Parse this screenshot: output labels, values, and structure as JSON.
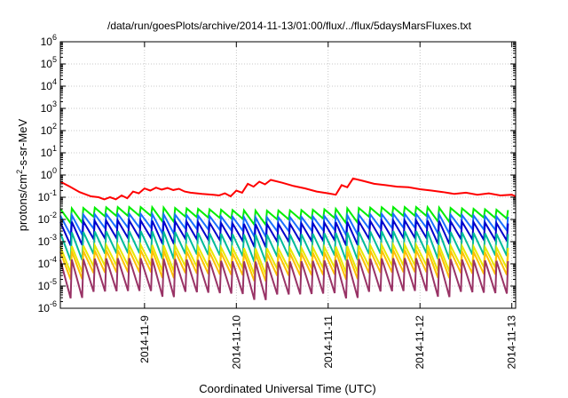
{
  "chart_data": {
    "type": "line",
    "title": "/data/run/goesPlots/archive/2014-11-13/01:00/flux/../flux/5daysMarsFluxes.txt",
    "xlabel": "Coordinated Universal Time (UTC)",
    "ylabel": {
      "base": "protons/cm",
      "sup": "2",
      "rest": "-s-sr-MeV"
    },
    "yscale": "log",
    "ylim": [
      -6,
      6
    ],
    "yticks": [
      {
        "exp": -6,
        "base": "10",
        "sup": "-6"
      },
      {
        "exp": -5,
        "base": "10",
        "sup": "-5"
      },
      {
        "exp": -4,
        "base": "10",
        "sup": "-4"
      },
      {
        "exp": -3,
        "base": "10",
        "sup": "-3"
      },
      {
        "exp": -2,
        "base": "10",
        "sup": "-2"
      },
      {
        "exp": -1,
        "base": "10",
        "sup": "-1"
      },
      {
        "exp": 0,
        "base": "10",
        "sup": "0"
      },
      {
        "exp": 1,
        "base": "10",
        "sup": "1"
      },
      {
        "exp": 2,
        "base": "10",
        "sup": "2"
      },
      {
        "exp": 3,
        "base": "10",
        "sup": "3"
      },
      {
        "exp": 4,
        "base": "10",
        "sup": "4"
      },
      {
        "exp": 5,
        "base": "10",
        "sup": "5"
      },
      {
        "exp": 6,
        "base": "10",
        "sup": "6"
      }
    ],
    "xlim": [
      "2014-11-08 02:00",
      "2014-11-13 01:00"
    ],
    "xticks": [
      {
        "t": "2014-11-09 00:00",
        "label": "2014-11-9"
      },
      {
        "t": "2014-11-10 00:00",
        "label": "2014-11-10"
      },
      {
        "t": "2014-11-11 00:00",
        "label": "2014-11-11"
      },
      {
        "t": "2014-11-12 00:00",
        "label": "2014-11-12"
      },
      {
        "t": "2014-11-13 00:00",
        "label": "2014-11-13"
      }
    ],
    "grid": true,
    "series": [
      {
        "color": "#ff0000",
        "points": [
          [
            "2014-11-08 02:00",
            0.5
          ],
          [
            "2014-11-08 04:30",
            0.3
          ],
          [
            "2014-11-08 07:00",
            0.17
          ],
          [
            "2014-11-08 10:00",
            0.11
          ],
          [
            "2014-11-08 12:00",
            0.1
          ],
          [
            "2014-11-08 13:30",
            0.08
          ],
          [
            "2014-11-08 15:00",
            0.1
          ],
          [
            "2014-11-08 16:30",
            0.08
          ],
          [
            "2014-11-08 18:00",
            0.12
          ],
          [
            "2014-11-08 19:30",
            0.09
          ],
          [
            "2014-11-08 21:00",
            0.18
          ],
          [
            "2014-11-08 22:30",
            0.15
          ],
          [
            "2014-11-09 00:00",
            0.25
          ],
          [
            "2014-11-09 01:30",
            0.2
          ],
          [
            "2014-11-09 03:00",
            0.27
          ],
          [
            "2014-11-09 04:30",
            0.22
          ],
          [
            "2014-11-09 06:00",
            0.26
          ],
          [
            "2014-11-09 07:30",
            0.21
          ],
          [
            "2014-11-09 09:00",
            0.24
          ],
          [
            "2014-11-09 10:30",
            0.18
          ],
          [
            "2014-11-09 12:00",
            0.16
          ],
          [
            "2014-11-09 15:00",
            0.14
          ],
          [
            "2014-11-09 18:00",
            0.13
          ],
          [
            "2014-11-09 19:30",
            0.12
          ],
          [
            "2014-11-09 21:00",
            0.15
          ],
          [
            "2014-11-09 22:30",
            0.11
          ],
          [
            "2014-11-10 00:00",
            0.2
          ],
          [
            "2014-11-10 01:30",
            0.16
          ],
          [
            "2014-11-10 03:00",
            0.4
          ],
          [
            "2014-11-10 04:30",
            0.3
          ],
          [
            "2014-11-10 06:00",
            0.5
          ],
          [
            "2014-11-10 07:30",
            0.38
          ],
          [
            "2014-11-10 09:00",
            0.6
          ],
          [
            "2014-11-10 12:00",
            0.45
          ],
          [
            "2014-11-10 15:00",
            0.32
          ],
          [
            "2014-11-10 18:00",
            0.25
          ],
          [
            "2014-11-10 21:00",
            0.18
          ],
          [
            "2014-11-11 00:00",
            0.15
          ],
          [
            "2014-11-11 02:00",
            0.13
          ],
          [
            "2014-11-11 03:30",
            0.35
          ],
          [
            "2014-11-11 05:00",
            0.28
          ],
          [
            "2014-11-11 06:30",
            0.7
          ],
          [
            "2014-11-11 09:00",
            0.55
          ],
          [
            "2014-11-11 12:00",
            0.4
          ],
          [
            "2014-11-11 15:00",
            0.35
          ],
          [
            "2014-11-11 18:00",
            0.3
          ],
          [
            "2014-11-11 21:00",
            0.28
          ],
          [
            "2014-11-12 00:00",
            0.23
          ],
          [
            "2014-11-12 03:00",
            0.2
          ],
          [
            "2014-11-12 06:00",
            0.17
          ],
          [
            "2014-11-12 09:00",
            0.14
          ],
          [
            "2014-11-12 12:00",
            0.16
          ],
          [
            "2014-11-12 15:00",
            0.13
          ],
          [
            "2014-11-12 18:00",
            0.15
          ],
          [
            "2014-11-12 21:00",
            0.12
          ],
          [
            "2014-11-13 00:00",
            0.13
          ],
          [
            "2014-11-13 01:00",
            0.11
          ]
        ]
      },
      {
        "color": "#00ee00",
        "sawtooth": {
          "high": 0.03,
          "low": 0.012,
          "period_h": 3
        }
      },
      {
        "color": "#1a6fff",
        "sawtooth": {
          "high": 0.015,
          "low": 0.0035,
          "period_h": 3
        }
      },
      {
        "color": "#0000cc",
        "sawtooth": {
          "high": 0.0075,
          "low": 0.0012,
          "period_h": 3
        }
      },
      {
        "color": "#00bb99",
        "sawtooth": {
          "high": 0.0025,
          "low": 0.00025,
          "period_h": 3
        }
      },
      {
        "color": "#e8e800",
        "sawtooth": {
          "high": 0.0006,
          "low": 7e-05,
          "period_h": 3
        }
      },
      {
        "color": "#ffc000",
        "sawtooth": {
          "high": 0.00035,
          "low": 3.5e-05,
          "period_h": 3
        }
      },
      {
        "color": "#993366",
        "sawtooth": {
          "high": 0.00015,
          "low": 5e-06,
          "period_h": 3
        }
      }
    ]
  }
}
